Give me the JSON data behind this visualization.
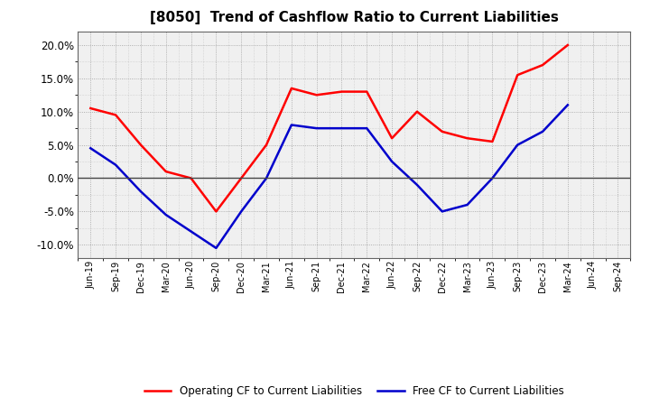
{
  "title": "[8050]  Trend of Cashflow Ratio to Current Liabilities",
  "x_labels": [
    "Jun-19",
    "Sep-19",
    "Dec-19",
    "Mar-20",
    "Jun-20",
    "Sep-20",
    "Dec-20",
    "Mar-21",
    "Jun-21",
    "Sep-21",
    "Dec-21",
    "Mar-22",
    "Jun-22",
    "Sep-22",
    "Dec-22",
    "Mar-23",
    "Jun-23",
    "Sep-23",
    "Dec-23",
    "Mar-24",
    "Jun-24",
    "Sep-24"
  ],
  "operating_cf": [
    10.5,
    9.5,
    5.0,
    1.0,
    0.0,
    -5.0,
    0.0,
    5.0,
    13.5,
    12.5,
    13.0,
    13.0,
    6.0,
    10.0,
    7.0,
    6.0,
    5.5,
    15.5,
    17.0,
    20.0,
    null,
    null
  ],
  "free_cf": [
    4.5,
    2.0,
    -2.0,
    -5.5,
    -8.0,
    -10.5,
    -5.0,
    0.0,
    8.0,
    7.5,
    7.5,
    7.5,
    2.5,
    -1.0,
    -5.0,
    -4.0,
    0.0,
    5.0,
    7.0,
    11.0,
    null,
    null
  ],
  "ylim": [
    -12.0,
    22.0
  ],
  "yticks": [
    -10.0,
    -5.0,
    0.0,
    5.0,
    10.0,
    15.0,
    20.0
  ],
  "operating_color": "#ff0000",
  "free_color": "#0000cc",
  "background_color": "#ffffff",
  "plot_bg_color": "#f0f0f0",
  "grid_color": "#888888",
  "zero_line_color": "#444444",
  "legend_operating": "Operating CF to Current Liabilities",
  "legend_free": "Free CF to Current Liabilities",
  "line_width": 1.8,
  "title_fontsize": 11
}
